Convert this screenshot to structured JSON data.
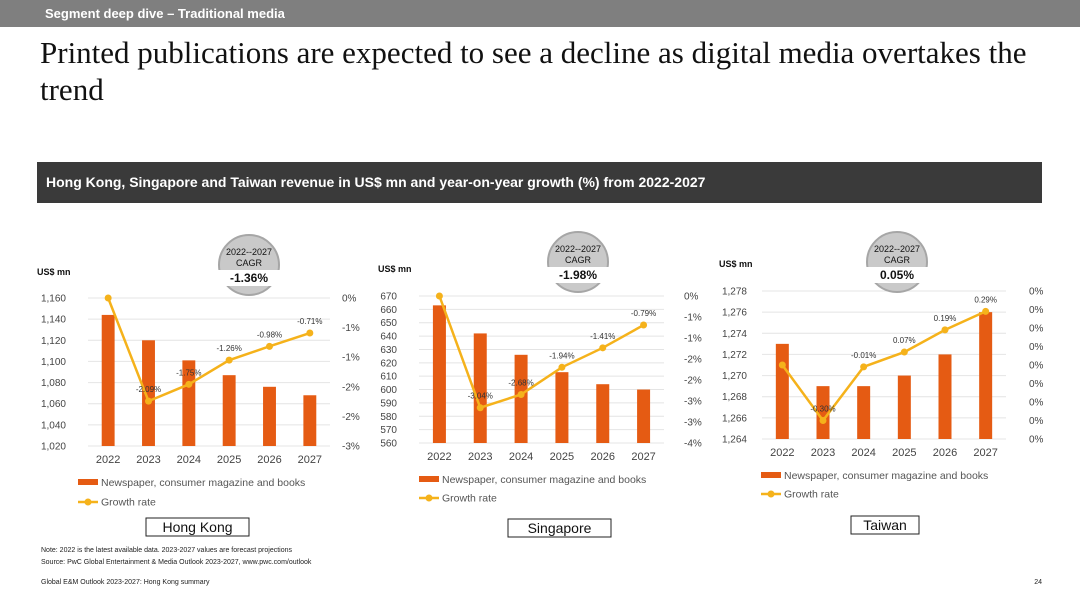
{
  "header": {
    "section_label": "Segment deep dive –  Traditional media",
    "title": "Printed publications are expected to see a decline as digital media overtakes the trend",
    "subtitle": "Hong Kong, Singapore and Taiwan revenue in US$ mn and year-on-year growth (%) from 2022-2027"
  },
  "colors": {
    "bar": "#e55b13",
    "line": "#f5b21b",
    "grid": "#e4e4e4",
    "title_bar": "#3a3a3a",
    "top_bar": "#7f7f7f"
  },
  "chart_data": [
    {
      "type": "bar",
      "region": "Hong Kong",
      "categories": [
        "2022",
        "2023",
        "2024",
        "2025",
        "2026",
        "2027"
      ],
      "ylabel": "US$ mn",
      "ylim": [
        1020,
        1160
      ],
      "y_ticks": [
        "1,020",
        "1,040",
        "1,060",
        "1,080",
        "1,100",
        "1,120",
        "1,140",
        "1,160"
      ],
      "y2lim": [
        -3,
        0
      ],
      "y2_ticks": [
        "-3%",
        "-2%",
        "-2%",
        "-1%",
        "-1%",
        "0%"
      ],
      "series": [
        {
          "name": "Newspaper, consumer magazine and books",
          "type": "bar",
          "values": [
            1144,
            1120,
            1101,
            1087,
            1076,
            1068
          ]
        },
        {
          "name": "Growth rate",
          "type": "line",
          "values": [
            0,
            -2.09,
            -1.75,
            -1.26,
            -0.98,
            -0.71
          ],
          "labels": [
            "",
            "-2.09%",
            "-1.75%",
            "-1.26%",
            "-0.98%",
            "-0.71%"
          ]
        }
      ],
      "cagr": {
        "period": "2022--2027",
        "label": "CAGR",
        "value": "-1.36%"
      }
    },
    {
      "type": "bar",
      "region": "Singapore",
      "categories": [
        "2022",
        "2023",
        "2024",
        "2025",
        "2026",
        "2027"
      ],
      "ylabel": "US$ mn",
      "ylim": [
        560,
        670
      ],
      "y_ticks": [
        "560",
        "570",
        "580",
        "590",
        "600",
        "610",
        "620",
        "630",
        "640",
        "650",
        "660",
        "670"
      ],
      "y2lim": [
        -4,
        0
      ],
      "y2_ticks": [
        "-4%",
        "-3%",
        "-3%",
        "-2%",
        "-2%",
        "-1%",
        "-1%",
        "0%"
      ],
      "series": [
        {
          "name": "Newspaper, consumer magazine and books",
          "type": "bar",
          "values": [
            663,
            642,
            626,
            613,
            604,
            600
          ]
        },
        {
          "name": "Growth rate",
          "type": "line",
          "values": [
            0,
            -3.04,
            -2.68,
            -1.94,
            -1.41,
            -0.79
          ],
          "labels": [
            "",
            "-3.04%",
            "-2.68%",
            "-1.94%",
            "-1.41%",
            "-0.79%"
          ]
        }
      ],
      "cagr": {
        "period": "2022--2027",
        "label": "CAGR",
        "value": "-1.98%"
      }
    },
    {
      "type": "bar",
      "region": "Taiwan",
      "categories": [
        "2022",
        "2023",
        "2024",
        "2025",
        "2026",
        "2027"
      ],
      "ylabel": "US$ mn",
      "ylim": [
        1264,
        1278
      ],
      "y_ticks": [
        "1,264",
        "1,266",
        "1,268",
        "1,270",
        "1,272",
        "1,274",
        "1,276",
        "1,278"
      ],
      "y2lim": [
        -0.4,
        0.4
      ],
      "y2_ticks": [
        "0%",
        "0%",
        "0%",
        "0%",
        "0%",
        "0%",
        "0%",
        "0%",
        "0%"
      ],
      "series": [
        {
          "name": "Newspaper, consumer magazine and books",
          "type": "bar",
          "values": [
            1273,
            1269,
            1269,
            1270,
            1272,
            1276
          ]
        },
        {
          "name": "Growth rate",
          "type": "line",
          "values": [
            0,
            -0.3,
            -0.01,
            0.07,
            0.19,
            0.29
          ],
          "labels": [
            "",
            "-0.30%",
            "-0.01%",
            "0.07%",
            "0.19%",
            "0.29%"
          ]
        }
      ],
      "cagr": {
        "period": "2022--2027",
        "label": "CAGR",
        "value": "0.05%"
      }
    }
  ],
  "footer": {
    "note": "Note: 2022 is the latest available data. 2023-2027 values are forecast projections",
    "source": "Source: PwC Global Entertainment & Media Outlook 2023-2027, www.pwc.com/outlook",
    "doc": "Global E&M Outlook 2023-2027: Hong Kong summary",
    "page": "24"
  }
}
